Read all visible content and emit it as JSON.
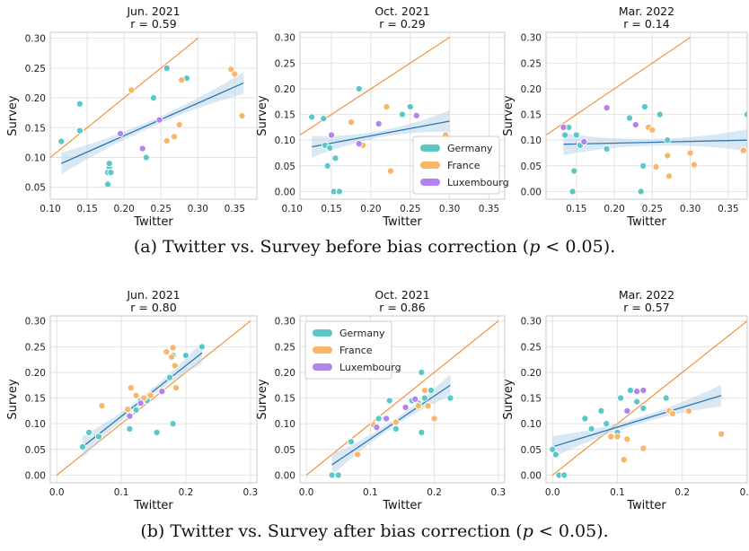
{
  "colors": {
    "Germany": "#5bc8c8",
    "France": "#f8b768",
    "Luxembourg": "#b381f0",
    "identity": "#f28a2c",
    "fit": "#2b78b5",
    "band": "#bcd6ea"
  },
  "captions": {
    "a": {
      "before": "(a) Twitter vs. Survey before bias correction (",
      "p": "p",
      "after": " < 0.05)."
    },
    "b": {
      "before": "(b) Twitter vs. Survey after bias correction (",
      "p": "p",
      "after": " < 0.05)."
    }
  },
  "chart_data": [
    {
      "type": "scatter",
      "title": "Jun. 2021",
      "subtitle": "r = 0.59",
      "xlabel": "Twitter",
      "ylabel": "Survey",
      "xlim": [
        0.1,
        0.38
      ],
      "ylim": [
        0.03,
        0.31
      ],
      "xticks": [
        "0.10",
        "0.15",
        "0.20",
        "0.25",
        "0.30",
        "0.35"
      ],
      "yticks": [
        "0.05",
        "0.10",
        "0.15",
        "0.20",
        "0.25",
        "0.30"
      ],
      "xtick_values": [
        0.1,
        0.15,
        0.2,
        0.25,
        0.3,
        0.35
      ],
      "ytick_values": [
        0.05,
        0.1,
        0.15,
        0.2,
        0.25,
        0.3
      ],
      "grid": true,
      "legend": null,
      "series": [
        {
          "name": "Germany",
          "x": [
            0.115,
            0.14,
            0.14,
            0.178,
            0.18,
            0.18,
            0.178,
            0.18,
            0.182,
            0.23,
            0.24,
            0.258,
            0.285
          ],
          "y": [
            0.127,
            0.19,
            0.145,
            0.055,
            0.075,
            0.083,
            0.075,
            0.09,
            0.075,
            0.1,
            0.2,
            0.25,
            0.233
          ]
        },
        {
          "name": "France",
          "x": [
            0.21,
            0.258,
            0.268,
            0.275,
            0.278,
            0.345,
            0.35,
            0.36
          ],
          "y": [
            0.213,
            0.128,
            0.135,
            0.155,
            0.23,
            0.248,
            0.24,
            0.17
          ]
        },
        {
          "name": "Luxembourg",
          "x": [
            0.195,
            0.225,
            0.248
          ],
          "y": [
            0.14,
            0.115,
            0.163
          ]
        }
      ],
      "fit": {
        "x": [
          0.115,
          0.362
        ],
        "y": [
          0.09,
          0.225
        ]
      },
      "identity": {
        "x": [
          0.1,
          0.3
        ],
        "y": [
          0.1,
          0.3
        ]
      }
    },
    {
      "type": "scatter",
      "title": "Oct. 2021",
      "subtitle": "r = 0.29",
      "xlabel": "Twitter",
      "ylabel": "Survey",
      "xlim": [
        0.11,
        0.37
      ],
      "ylim": [
        -0.015,
        0.31
      ],
      "xticks": [
        "0.10",
        "0.15",
        "0.20",
        "0.25",
        "0.30",
        "0.35"
      ],
      "yticks": [
        "0.00",
        "0.05",
        "0.10",
        "0.15",
        "0.20",
        "0.25",
        "0.30"
      ],
      "xtick_values": [
        0.1,
        0.15,
        0.2,
        0.25,
        0.3,
        0.35
      ],
      "ytick_values": [
        0.0,
        0.05,
        0.1,
        0.15,
        0.2,
        0.25,
        0.3
      ],
      "grid": true,
      "legend": "lower-right",
      "series": [
        {
          "name": "Germany",
          "x": [
            0.125,
            0.14,
            0.142,
            0.145,
            0.148,
            0.15,
            0.153,
            0.155,
            0.16,
            0.185,
            0.24,
            0.25
          ],
          "y": [
            0.145,
            0.142,
            0.09,
            0.05,
            0.085,
            0.11,
            0.0,
            0.065,
            0.0,
            0.2,
            0.15,
            0.165
          ]
        },
        {
          "name": "France",
          "x": [
            0.175,
            0.19,
            0.22,
            0.225,
            0.26,
            0.295,
            0.3
          ],
          "y": [
            0.135,
            0.09,
            0.165,
            0.04,
            0.103,
            0.11,
            0.098
          ]
        },
        {
          "name": "Luxembourg",
          "x": [
            0.15,
            0.185,
            0.21,
            0.258
          ],
          "y": [
            0.11,
            0.093,
            0.132,
            0.148
          ]
        }
      ],
      "fit": {
        "x": [
          0.125,
          0.3
        ],
        "y": [
          0.087,
          0.137
        ]
      },
      "identity": {
        "x": [
          0.1,
          0.3
        ],
        "y": [
          0.1,
          0.3
        ]
      }
    },
    {
      "type": "scatter",
      "title": "Mar. 2022",
      "subtitle": "r = 0.14",
      "xlabel": "Twitter",
      "ylabel": "Survey",
      "xlim": [
        0.11,
        0.375
      ],
      "ylim": [
        -0.015,
        0.31
      ],
      "xticks": [
        "0.15",
        "0.20",
        "0.25",
        "0.30",
        "0.35"
      ],
      "yticks": [
        "0.00",
        "0.05",
        "0.10",
        "0.15",
        "0.20",
        "0.25",
        "0.30"
      ],
      "xtick_values": [
        0.15,
        0.2,
        0.25,
        0.3,
        0.35
      ],
      "ytick_values": [
        0.0,
        0.05,
        0.1,
        0.15,
        0.2,
        0.25,
        0.3
      ],
      "grid": true,
      "legend": null,
      "series": [
        {
          "name": "Germany",
          "x": [
            0.135,
            0.14,
            0.145,
            0.147,
            0.15,
            0.155,
            0.19,
            0.22,
            0.235,
            0.238,
            0.24,
            0.26,
            0.27,
            0.375
          ],
          "y": [
            0.11,
            0.125,
            0.0,
            0.04,
            0.11,
            0.09,
            0.083,
            0.143,
            0.0,
            0.05,
            0.165,
            0.15,
            0.1,
            0.15
          ]
        },
        {
          "name": "France",
          "x": [
            0.245,
            0.25,
            0.255,
            0.27,
            0.272,
            0.3,
            0.305,
            0.37
          ],
          "y": [
            0.125,
            0.12,
            0.048,
            0.07,
            0.03,
            0.075,
            0.052,
            0.08
          ]
        },
        {
          "name": "Luxembourg",
          "x": [
            0.133,
            0.16,
            0.19,
            0.228
          ],
          "y": [
            0.125,
            0.097,
            0.163,
            0.13
          ]
        }
      ],
      "fit": {
        "x": [
          0.133,
          0.375
        ],
        "y": [
          0.092,
          0.1
        ]
      },
      "identity": {
        "x": [
          0.1,
          0.3
        ],
        "y": [
          0.1,
          0.3
        ]
      }
    },
    {
      "type": "scatter",
      "title": "Jun. 2021",
      "subtitle": "r = 0.80",
      "xlabel": "Twitter",
      "ylabel": "Survey",
      "xlim": [
        -0.01,
        0.31
      ],
      "ylim": [
        -0.015,
        0.31
      ],
      "xticks": [
        "0.0",
        "0.1",
        "0.2",
        "0.3"
      ],
      "yticks": [
        "0.00",
        "0.05",
        "0.10",
        "0.15",
        "0.20",
        "0.25",
        "0.30"
      ],
      "xtick_values": [
        0.0,
        0.1,
        0.2,
        0.3
      ],
      "ytick_values": [
        0.0,
        0.05,
        0.1,
        0.15,
        0.2,
        0.25,
        0.3
      ],
      "grid": true,
      "legend": null,
      "series": [
        {
          "name": "Germany",
          "x": [
            0.04,
            0.05,
            0.065,
            0.113,
            0.123,
            0.13,
            0.14,
            0.155,
            0.175,
            0.18,
            0.18,
            0.2,
            0.225
          ],
          "y": [
            0.055,
            0.083,
            0.075,
            0.09,
            0.127,
            0.145,
            0.145,
            0.083,
            0.19,
            0.233,
            0.1,
            0.233,
            0.25
          ]
        },
        {
          "name": "France",
          "x": [
            0.07,
            0.11,
            0.115,
            0.123,
            0.135,
            0.145,
            0.17,
            0.178,
            0.18,
            0.183,
            0.185
          ],
          "y": [
            0.135,
            0.128,
            0.17,
            0.155,
            0.15,
            0.155,
            0.24,
            0.23,
            0.248,
            0.213,
            0.17
          ]
        },
        {
          "name": "Luxembourg",
          "x": [
            0.113,
            0.13,
            0.163
          ],
          "y": [
            0.115,
            0.14,
            0.163
          ]
        }
      ],
      "fit": {
        "x": [
          0.04,
          0.225
        ],
        "y": [
          0.055,
          0.238
        ]
      },
      "identity": {
        "x": [
          0.0,
          0.3
        ],
        "y": [
          0.0,
          0.3
        ]
      }
    },
    {
      "type": "scatter",
      "title": "Oct. 2021",
      "subtitle": "r = 0.86",
      "xlabel": "Twitter",
      "ylabel": "Survey",
      "xlim": [
        -0.01,
        0.31
      ],
      "ylim": [
        -0.015,
        0.31
      ],
      "xticks": [
        "0.0",
        "0.1",
        "0.2",
        "0.3"
      ],
      "yticks": [
        "0.00",
        "0.05",
        "0.10",
        "0.15",
        "0.20",
        "0.25",
        "0.30"
      ],
      "xtick_values": [
        0.0,
        0.1,
        0.2,
        0.3
      ],
      "ytick_values": [
        0.0,
        0.05,
        0.1,
        0.15,
        0.2,
        0.25,
        0.3
      ],
      "grid": true,
      "legend": "upper-left",
      "series": [
        {
          "name": "Germany",
          "x": [
            0.04,
            0.05,
            0.07,
            0.113,
            0.123,
            0.13,
            0.14,
            0.165,
            0.175,
            0.18,
            0.18,
            0.185,
            0.195,
            0.225
          ],
          "y": [
            0.0,
            0.0,
            0.065,
            0.11,
            0.11,
            0.145,
            0.09,
            0.145,
            0.14,
            0.083,
            0.2,
            0.15,
            0.165,
            0.15
          ]
        },
        {
          "name": "France",
          "x": [
            0.08,
            0.105,
            0.14,
            0.175,
            0.185,
            0.19,
            0.2
          ],
          "y": [
            0.04,
            0.098,
            0.103,
            0.135,
            0.165,
            0.135,
            0.11
          ]
        },
        {
          "name": "Luxembourg",
          "x": [
            0.11,
            0.125,
            0.155,
            0.17
          ],
          "y": [
            0.093,
            0.11,
            0.132,
            0.148
          ]
        }
      ],
      "fit": {
        "x": [
          0.04,
          0.225
        ],
        "y": [
          0.02,
          0.175
        ]
      },
      "identity": {
        "x": [
          0.0,
          0.3
        ],
        "y": [
          0.0,
          0.3
        ]
      }
    },
    {
      "type": "scatter",
      "title": "Mar. 2022",
      "subtitle": "r = 0.57",
      "xlabel": "Twitter",
      "ylabel": "Survey",
      "xlim": [
        -0.01,
        0.3
      ],
      "ylim": [
        -0.015,
        0.31
      ],
      "xticks": [
        "0.0",
        "0.1",
        "0.2",
        "0.3"
      ],
      "yticks": [
        "0.00",
        "0.05",
        "0.10",
        "0.15",
        "0.20",
        "0.25",
        "0.30"
      ],
      "xtick_values": [
        0.0,
        0.1,
        0.2,
        0.3
      ],
      "ytick_values": [
        0.0,
        0.05,
        0.1,
        0.15,
        0.2,
        0.25,
        0.3
      ],
      "grid": true,
      "legend": null,
      "series": [
        {
          "name": "Germany",
          "x": [
            0.0,
            0.01,
            0.018,
            0.005,
            0.05,
            0.06,
            0.075,
            0.083,
            0.1,
            0.105,
            0.12,
            0.13,
            0.14,
            0.175
          ],
          "y": [
            0.05,
            0.0,
            0.0,
            0.04,
            0.11,
            0.09,
            0.125,
            0.1,
            0.083,
            0.15,
            0.165,
            0.143,
            0.13,
            0.15
          ]
        },
        {
          "name": "France",
          "x": [
            0.09,
            0.1,
            0.11,
            0.115,
            0.14,
            0.18,
            0.185,
            0.21,
            0.26
          ],
          "y": [
            0.075,
            0.075,
            0.03,
            0.07,
            0.052,
            0.125,
            0.12,
            0.125,
            0.08
          ]
        },
        {
          "name": "Luxembourg",
          "x": [
            0.115,
            0.13,
            0.14
          ],
          "y": [
            0.125,
            0.163,
            0.165
          ]
        }
      ],
      "fit": {
        "x": [
          0.0,
          0.26
        ],
        "y": [
          0.055,
          0.155
        ]
      },
      "identity": {
        "x": [
          0.0,
          0.3
        ],
        "y": [
          0.0,
          0.3
        ]
      }
    }
  ]
}
